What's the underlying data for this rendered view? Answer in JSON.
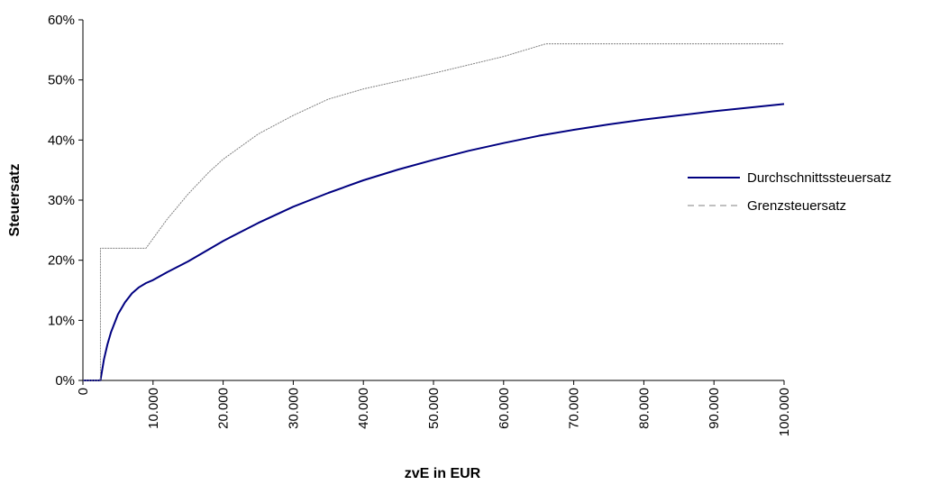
{
  "chart_data": {
    "type": "line",
    "title": "",
    "xlabel": "zvE in EUR",
    "ylabel": "Steuersatz",
    "xlim": [
      0,
      100000
    ],
    "ylim": [
      0,
      0.6
    ],
    "x_ticks": [
      0,
      10000,
      20000,
      30000,
      40000,
      50000,
      60000,
      70000,
      80000,
      90000,
      100000
    ],
    "x_tick_labels": [
      "0",
      "10.000",
      "20.000",
      "30.000",
      "40.000",
      "50.000",
      "60.000",
      "70.000",
      "80.000",
      "90.000",
      "100.000"
    ],
    "y_ticks": [
      0,
      0.1,
      0.2,
      0.3,
      0.4,
      0.5,
      0.6
    ],
    "y_tick_labels": [
      "0%",
      "10%",
      "20%",
      "30%",
      "40%",
      "50%",
      "60%"
    ],
    "grid": false,
    "legend_position": "right",
    "series": [
      {
        "name": "Durchschnittssteuersatz",
        "color": "#000080",
        "line_style": "solid",
        "x": [
          0,
          2500,
          3000,
          3500,
          4000,
          5000,
          6000,
          7000,
          8000,
          9000,
          10000,
          12000,
          15000,
          20000,
          25000,
          30000,
          35000,
          40000,
          45000,
          50000,
          55000,
          60000,
          65000,
          70000,
          75000,
          80000,
          85000,
          90000,
          95000,
          100000
        ],
        "values": [
          0,
          0,
          0.035,
          0.06,
          0.08,
          0.11,
          0.13,
          0.145,
          0.155,
          0.162,
          0.167,
          0.18,
          0.198,
          0.232,
          0.262,
          0.289,
          0.312,
          0.333,
          0.351,
          0.367,
          0.382,
          0.395,
          0.407,
          0.417,
          0.426,
          0.434,
          0.441,
          0.448,
          0.454,
          0.46
        ]
      },
      {
        "name": "Grenzsteuersatz",
        "color": "#808080",
        "line_style": "dashed",
        "x": [
          0,
          2500,
          2500,
          9000,
          10000,
          12000,
          15000,
          18000,
          20000,
          25000,
          30000,
          35000,
          40000,
          45000,
          50000,
          55000,
          60000,
          66000,
          100000
        ],
        "values": [
          0,
          0,
          0.22,
          0.22,
          0.236,
          0.268,
          0.31,
          0.347,
          0.368,
          0.41,
          0.441,
          0.468,
          0.485,
          0.498,
          0.511,
          0.525,
          0.539,
          0.56,
          0.56
        ]
      }
    ]
  }
}
